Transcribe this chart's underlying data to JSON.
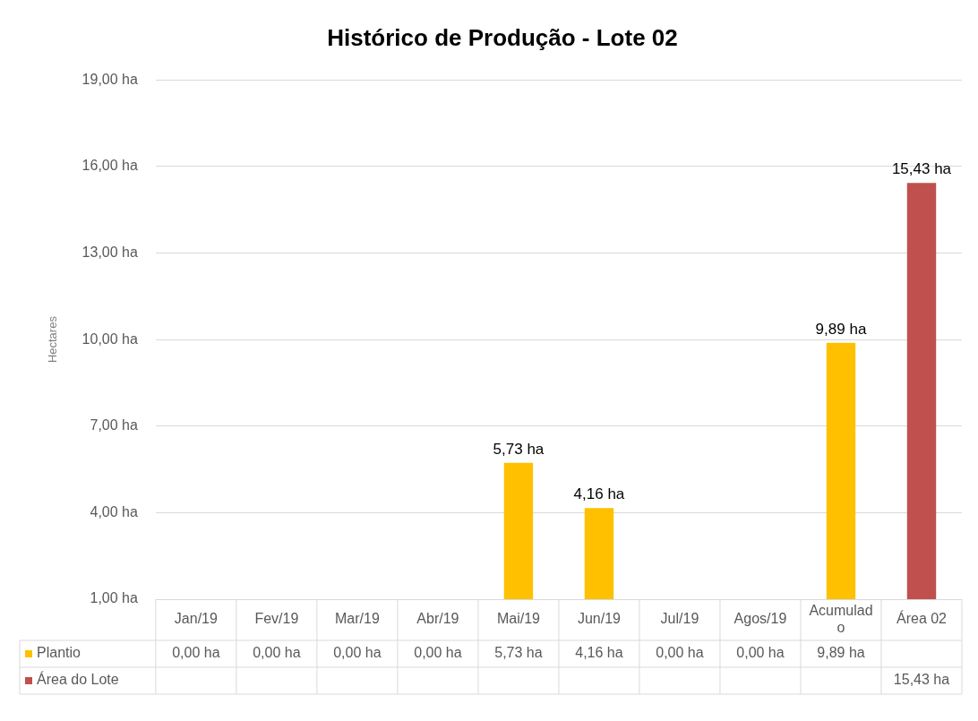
{
  "chart_data": {
    "type": "bar",
    "title": "Histórico de Produção - Lote 02",
    "ylabel": "Hectares",
    "categories": [
      "Jan/19",
      "Fev/19",
      "Mar/19",
      "Abr/19",
      "Mai/19",
      "Jun/19",
      "Jul/19",
      "Agos/19",
      "Acumulado",
      "Área 02"
    ],
    "series": [
      {
        "name": "Plantio",
        "color": "#ffc000",
        "values": [
          null,
          null,
          null,
          null,
          5.73,
          4.16,
          null,
          null,
          9.89,
          null
        ],
        "value_labels": [
          "0,00 ha",
          "0,00 ha",
          "0,00 ha",
          "0,00 ha",
          "5,73 ha",
          "4,16 ha",
          "0,00 ha",
          "0,00 ha",
          "9,89 ha",
          null
        ]
      },
      {
        "name": "Área do Lote",
        "color": "#c0504d",
        "values": [
          null,
          null,
          null,
          null,
          null,
          null,
          null,
          null,
          null,
          15.43
        ],
        "value_labels": [
          null,
          null,
          null,
          null,
          null,
          null,
          null,
          null,
          null,
          "15,43 ha"
        ]
      }
    ],
    "ylim": [
      1,
      19
    ],
    "yticks": [
      {
        "value": 1,
        "label": "1,00 ha"
      },
      {
        "value": 4,
        "label": "4,00 ha"
      },
      {
        "value": 7,
        "label": "7,00 ha"
      },
      {
        "value": 10,
        "label": "10,00 ha"
      },
      {
        "value": 13,
        "label": "13,00 ha"
      },
      {
        "value": 16,
        "label": "16,00 ha"
      },
      {
        "value": 19,
        "label": "19,00 ha"
      }
    ],
    "grid": "y",
    "legend": "bottom"
  }
}
